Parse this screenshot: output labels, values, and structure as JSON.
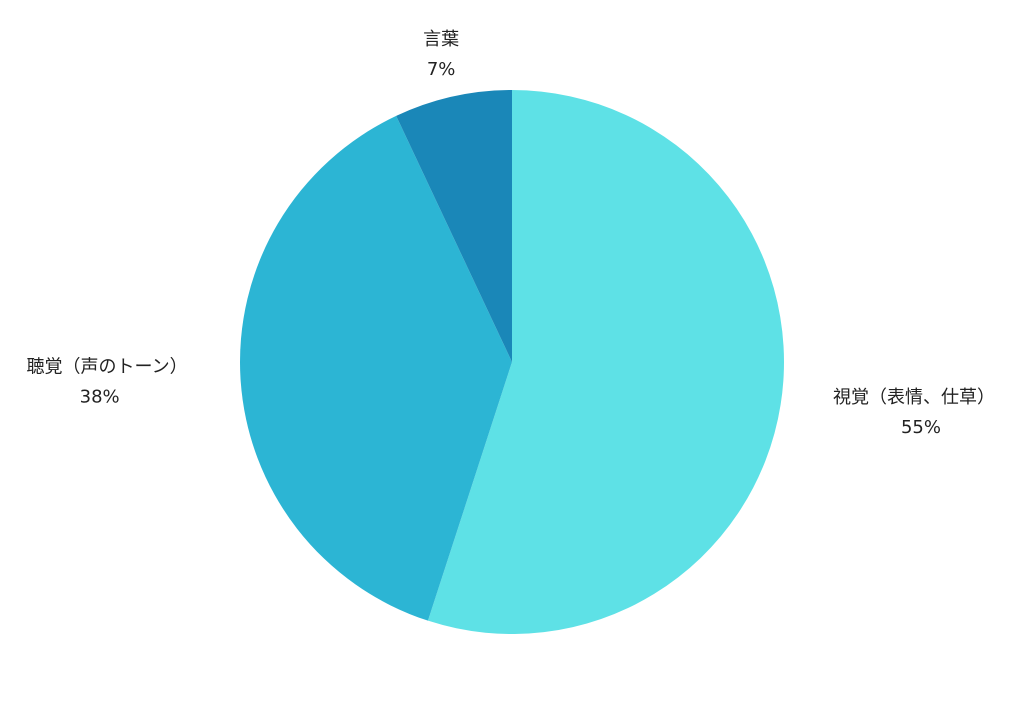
{
  "chart_data": {
    "type": "pie",
    "categories": [
      "視覚（表情、仕草）",
      "聴覚（声のトーン）",
      "言葉"
    ],
    "values": [
      55,
      38,
      7
    ],
    "value_labels": [
      "55%",
      "38%",
      "7%"
    ],
    "colors": [
      "#5ee1e6",
      "#2cb5d4",
      "#1a87b8"
    ]
  }
}
